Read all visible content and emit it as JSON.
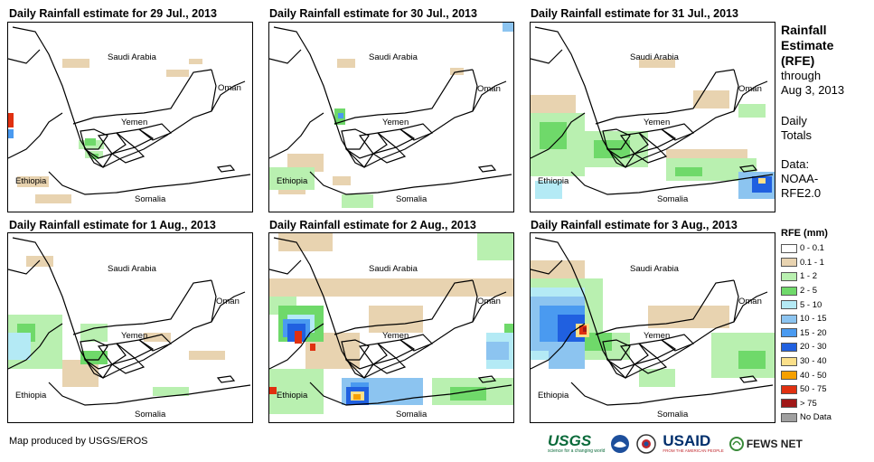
{
  "panels": [
    {
      "title": "Daily Rainfall estimate for 29 Jul., 2013"
    },
    {
      "title": "Daily Rainfall estimate for 30 Jul., 2013"
    },
    {
      "title": "Daily Rainfall estimate for 31 Jul., 2013"
    },
    {
      "title": "Daily Rainfall estimate for 1 Aug., 2013"
    },
    {
      "title": "Daily Rainfall estimate for 2 Aug., 2013"
    },
    {
      "title": "Daily Rainfall estimate for 3 Aug., 2013"
    }
  ],
  "map_labels": {
    "saudi": "Saudi Arabia",
    "oman": "Oman",
    "yemen": "Yemen",
    "ethiopia": "Ethiopia",
    "somalia": "Somalia"
  },
  "sidebar": {
    "title_line1": "Rainfall",
    "title_line2": "Estimate",
    "title_line3": "(RFE)",
    "through": "through",
    "through_date": "Aug 3, 2013",
    "daily1": "Daily",
    "daily2": "Totals",
    "data1": "Data:",
    "data2": "NOAA-",
    "data3": "RFE2.0"
  },
  "legend": {
    "title": "RFE (mm)",
    "items": [
      {
        "label": "0 - 0.1",
        "color": "#ffffff"
      },
      {
        "label": "0.1 - 1",
        "color": "#e8d3b0"
      },
      {
        "label": "1 - 2",
        "color": "#b9f0b0"
      },
      {
        "label": "2 - 5",
        "color": "#6fd96a"
      },
      {
        "label": "5 - 10",
        "color": "#b4eaf5"
      },
      {
        "label": "10 - 15",
        "color": "#8cc4f0"
      },
      {
        "label": "15 - 20",
        "color": "#4a9af0"
      },
      {
        "label": "20 - 30",
        "color": "#2060e0"
      },
      {
        "label": "30 - 40",
        "color": "#fbe08a"
      },
      {
        "label": "40 - 50",
        "color": "#f5a000"
      },
      {
        "label": "50 - 75",
        "color": "#e03010"
      },
      {
        "label": "> 75",
        "color": "#a01818"
      },
      {
        "label": "No Data",
        "color": "#a0a0a0"
      }
    ]
  },
  "credit": "Map produced by USGS/EROS",
  "logos": {
    "usgs": "USGS",
    "usgs_tag": "science for a changing world",
    "usaid": "USAID",
    "usaid_tag": "FROM THE AMERICAN PEOPLE",
    "fews": "FEWS NET"
  }
}
